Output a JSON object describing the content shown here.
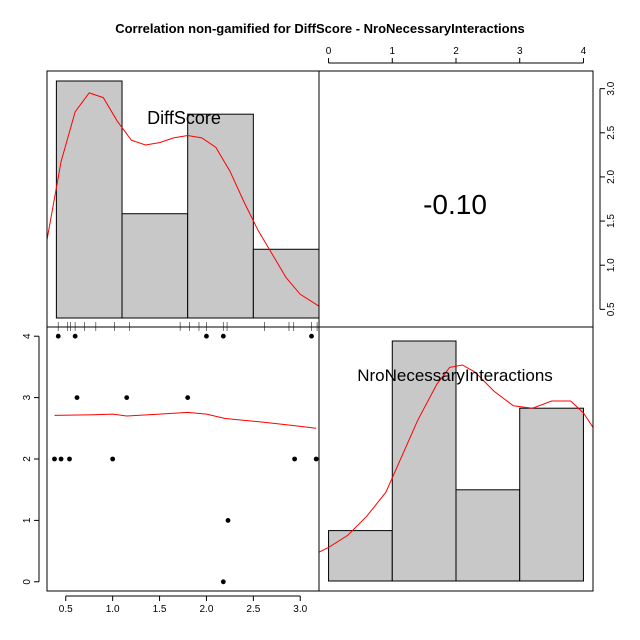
{
  "chart_data": {
    "type": "scatter-matrix",
    "title": "Correlation non-gamified for DiffScore - NroNecessaryInteractions",
    "variables": [
      "DiffScore",
      "NroNecessaryInteractions"
    ],
    "correlation_label": "-0.10",
    "diffscore_axis": {
      "ticks": [
        "0.5",
        "1.0",
        "1.5",
        "2.0",
        "2.5",
        "3.0"
      ],
      "range": [
        0.3,
        3.2
      ]
    },
    "interactions_axis": {
      "ticks": [
        "0",
        "1",
        "2",
        "3",
        "4"
      ],
      "range": [
        -0.15,
        4.15
      ]
    },
    "diffscore_histogram": {
      "breaks": [
        0.4,
        1.1,
        1.8,
        2.5,
        3.2
      ],
      "relative_heights": [
        1.0,
        0.44,
        0.86,
        0.29
      ]
    },
    "interactions_histogram": {
      "breaks": [
        0,
        1,
        2,
        3,
        4
      ],
      "relative_heights": [
        0.21,
        1.0,
        0.38,
        0.72
      ]
    },
    "diffscore_density": [
      [
        0.3,
        0.33
      ],
      [
        0.45,
        0.66
      ],
      [
        0.6,
        0.87
      ],
      [
        0.75,
        0.95
      ],
      [
        0.9,
        0.93
      ],
      [
        1.05,
        0.83
      ],
      [
        1.2,
        0.75
      ],
      [
        1.35,
        0.73
      ],
      [
        1.5,
        0.74
      ],
      [
        1.65,
        0.76
      ],
      [
        1.8,
        0.77
      ],
      [
        1.95,
        0.76
      ],
      [
        2.1,
        0.72
      ],
      [
        2.25,
        0.62
      ],
      [
        2.4,
        0.49
      ],
      [
        2.55,
        0.37
      ],
      [
        2.7,
        0.27
      ],
      [
        2.85,
        0.17
      ],
      [
        3.0,
        0.1
      ],
      [
        3.2,
        0.05
      ]
    ],
    "interactions_density": [
      [
        -0.15,
        0.12
      ],
      [
        0.0,
        0.14
      ],
      [
        0.3,
        0.19
      ],
      [
        0.6,
        0.27
      ],
      [
        0.9,
        0.37
      ],
      [
        1.1,
        0.49
      ],
      [
        1.4,
        0.67
      ],
      [
        1.7,
        0.82
      ],
      [
        1.9,
        0.89
      ],
      [
        2.1,
        0.9
      ],
      [
        2.3,
        0.87
      ],
      [
        2.6,
        0.79
      ],
      [
        2.9,
        0.73
      ],
      [
        3.2,
        0.72
      ],
      [
        3.5,
        0.75
      ],
      [
        3.8,
        0.75
      ],
      [
        4.0,
        0.7
      ],
      [
        4.15,
        0.64
      ]
    ],
    "rug_diffscore": [
      0.42,
      0.52,
      0.55,
      0.6,
      0.7,
      0.82,
      1.02,
      1.18,
      1.72,
      1.82,
      1.92,
      2.0,
      2.18,
      2.22,
      2.62,
      2.88,
      2.93,
      3.12,
      3.18
    ],
    "points": [
      {
        "x": 0.42,
        "y": 4
      },
      {
        "x": 0.6,
        "y": 4
      },
      {
        "x": 2.0,
        "y": 4
      },
      {
        "x": 2.18,
        "y": 4
      },
      {
        "x": 3.12,
        "y": 4
      },
      {
        "x": 0.62,
        "y": 3
      },
      {
        "x": 1.15,
        "y": 3
      },
      {
        "x": 1.8,
        "y": 3
      },
      {
        "x": 0.38,
        "y": 2
      },
      {
        "x": 0.45,
        "y": 2
      },
      {
        "x": 0.54,
        "y": 2
      },
      {
        "x": 1.0,
        "y": 2
      },
      {
        "x": 2.94,
        "y": 2
      },
      {
        "x": 3.17,
        "y": 2
      },
      {
        "x": 2.23,
        "y": 1
      },
      {
        "x": 2.18,
        "y": 0
      }
    ],
    "smooth_line": [
      [
        0.38,
        2.71
      ],
      [
        0.8,
        2.72
      ],
      [
        1.0,
        2.73
      ],
      [
        1.15,
        2.7
      ],
      [
        1.5,
        2.73
      ],
      [
        1.8,
        2.76
      ],
      [
        2.0,
        2.73
      ],
      [
        2.2,
        2.66
      ],
      [
        2.6,
        2.6
      ],
      [
        2.9,
        2.55
      ],
      [
        3.17,
        2.5
      ]
    ],
    "colors": {
      "histogram_fill": "#c8c8c8",
      "density": "#ff0000",
      "points": "#000000"
    }
  }
}
